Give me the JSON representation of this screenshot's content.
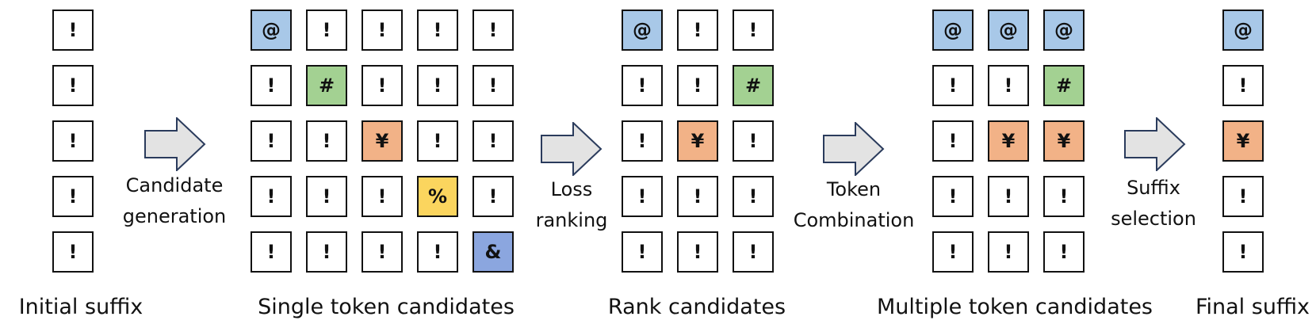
{
  "colors": {
    "blue": "#a8c8e8",
    "green": "#a3d192",
    "orange": "#f2b287",
    "yellow": "#fbd55e",
    "indigo": "#8ba6df",
    "white": "#ffffff",
    "arrow_fill": "#e3e3e3",
    "arrow_stroke": "#2a3b5c"
  },
  "sections": [
    {
      "label": "Initial suffix",
      "cells": [
        [
          {
            "t": "!",
            "c": "white"
          }
        ],
        [
          {
            "t": "!",
            "c": "white"
          }
        ],
        [
          {
            "t": "!",
            "c": "white"
          }
        ],
        [
          {
            "t": "!",
            "c": "white"
          }
        ],
        [
          {
            "t": "!",
            "c": "white"
          }
        ]
      ]
    },
    {
      "label": "Single token candidates",
      "cells": [
        [
          {
            "t": "@",
            "c": "blue"
          },
          {
            "t": "!",
            "c": "white"
          },
          {
            "t": "!",
            "c": "white"
          },
          {
            "t": "!",
            "c": "white"
          },
          {
            "t": "!",
            "c": "white"
          }
        ],
        [
          {
            "t": "!",
            "c": "white"
          },
          {
            "t": "#",
            "c": "green"
          },
          {
            "t": "!",
            "c": "white"
          },
          {
            "t": "!",
            "c": "white"
          },
          {
            "t": "!",
            "c": "white"
          }
        ],
        [
          {
            "t": "!",
            "c": "white"
          },
          {
            "t": "!",
            "c": "white"
          },
          {
            "t": "¥",
            "c": "orange"
          },
          {
            "t": "!",
            "c": "white"
          },
          {
            "t": "!",
            "c": "white"
          }
        ],
        [
          {
            "t": "!",
            "c": "white"
          },
          {
            "t": "!",
            "c": "white"
          },
          {
            "t": "!",
            "c": "white"
          },
          {
            "t": "%",
            "c": "yellow"
          },
          {
            "t": "!",
            "c": "white"
          }
        ],
        [
          {
            "t": "!",
            "c": "white"
          },
          {
            "t": "!",
            "c": "white"
          },
          {
            "t": "!",
            "c": "white"
          },
          {
            "t": "!",
            "c": "white"
          },
          {
            "t": "&",
            "c": "indigo"
          }
        ]
      ]
    },
    {
      "label": "Rank candidates",
      "cells": [
        [
          {
            "t": "@",
            "c": "blue"
          },
          {
            "t": "!",
            "c": "white"
          },
          {
            "t": "!",
            "c": "white"
          }
        ],
        [
          {
            "t": "!",
            "c": "white"
          },
          {
            "t": "!",
            "c": "white"
          },
          {
            "t": "#",
            "c": "green"
          }
        ],
        [
          {
            "t": "!",
            "c": "white"
          },
          {
            "t": "¥",
            "c": "orange"
          },
          {
            "t": "!",
            "c": "white"
          }
        ],
        [
          {
            "t": "!",
            "c": "white"
          },
          {
            "t": "!",
            "c": "white"
          },
          {
            "t": "!",
            "c": "white"
          }
        ],
        [
          {
            "t": "!",
            "c": "white"
          },
          {
            "t": "!",
            "c": "white"
          },
          {
            "t": "!",
            "c": "white"
          }
        ]
      ]
    },
    {
      "label": "Multiple token candidates",
      "cells": [
        [
          {
            "t": "@",
            "c": "blue"
          },
          {
            "t": "@",
            "c": "blue"
          },
          {
            "t": "@",
            "c": "blue"
          }
        ],
        [
          {
            "t": "!",
            "c": "white"
          },
          {
            "t": "!",
            "c": "white"
          },
          {
            "t": "#",
            "c": "green"
          }
        ],
        [
          {
            "t": "!",
            "c": "white"
          },
          {
            "t": "¥",
            "c": "orange"
          },
          {
            "t": "¥",
            "c": "orange"
          }
        ],
        [
          {
            "t": "!",
            "c": "white"
          },
          {
            "t": "!",
            "c": "white"
          },
          {
            "t": "!",
            "c": "white"
          }
        ],
        [
          {
            "t": "!",
            "c": "white"
          },
          {
            "t": "!",
            "c": "white"
          },
          {
            "t": "!",
            "c": "white"
          }
        ]
      ]
    },
    {
      "label": "Final suffix",
      "cells": [
        [
          {
            "t": "@",
            "c": "blue"
          }
        ],
        [
          {
            "t": "!",
            "c": "white"
          }
        ],
        [
          {
            "t": "¥",
            "c": "orange"
          }
        ],
        [
          {
            "t": "!",
            "c": "white"
          }
        ],
        [
          {
            "t": "!",
            "c": "white"
          }
        ]
      ]
    }
  ],
  "steps": [
    {
      "line1": "Candidate",
      "line2": "generation"
    },
    {
      "line1": "Loss",
      "line2": "ranking"
    },
    {
      "line1": "Token",
      "line2": "Combination"
    },
    {
      "line1": "Suffix",
      "line2": "selection"
    }
  ]
}
